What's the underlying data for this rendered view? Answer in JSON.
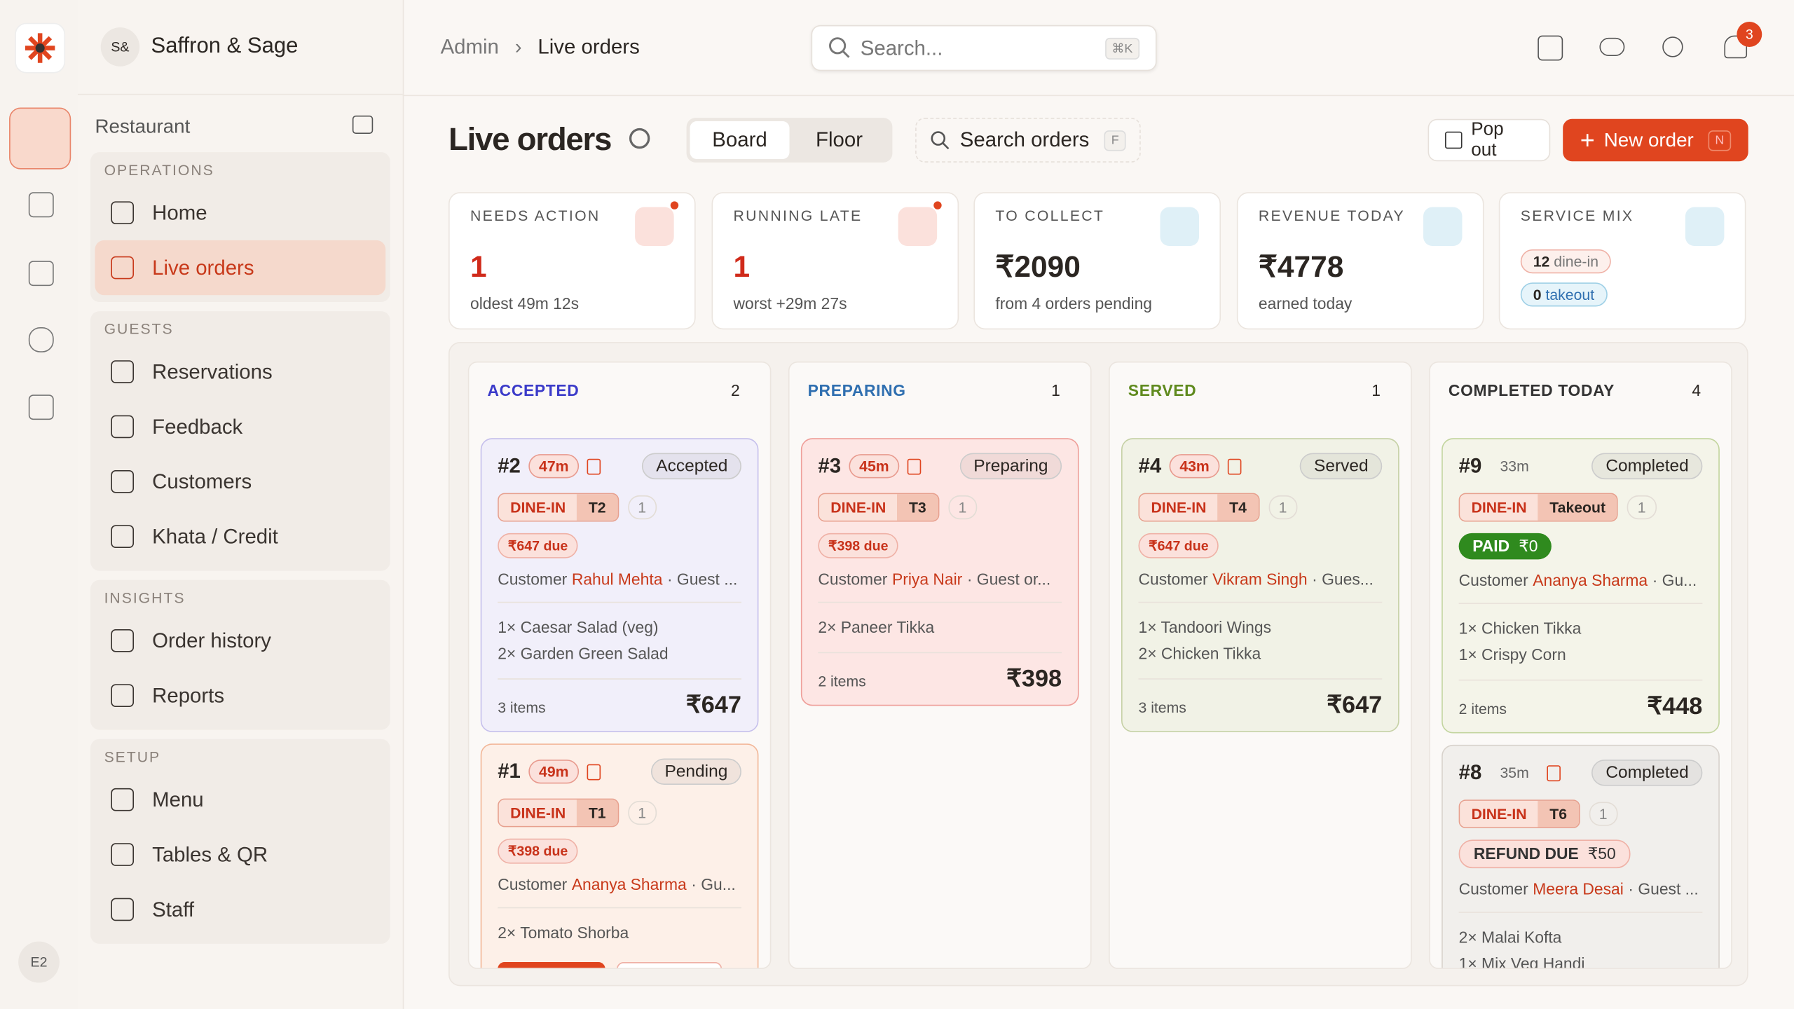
{
  "brand": {
    "initials": "S&",
    "name": "Saffron & Sage"
  },
  "rail_badge": "E2",
  "sidebar": {
    "section": "Restaurant",
    "active": "Live orders",
    "groups": [
      {
        "title": "OPERATIONS",
        "items": [
          "Home",
          "Live orders"
        ]
      },
      {
        "title": "GUESTS",
        "items": [
          "Reservations",
          "Feedback",
          "Customers",
          "Khata / Credit"
        ]
      },
      {
        "title": "INSIGHTS",
        "items": [
          "Order history",
          "Reports"
        ]
      },
      {
        "title": "SETUP",
        "items": [
          "Menu",
          "Tables & QR",
          "Staff"
        ]
      }
    ]
  },
  "breadcrumb": [
    "Admin",
    "Live orders"
  ],
  "search": {
    "placeholder": "Search...",
    "shortcut": "⌘K"
  },
  "notifications": 3,
  "page": {
    "title": "Live orders",
    "tabs": [
      "Board",
      "Floor"
    ],
    "search": "Search orders",
    "search_key": "F",
    "pop_out": "Pop out",
    "new_order": "New order",
    "new_key": "N"
  },
  "stats": [
    {
      "label": "NEEDS ACTION",
      "value": "1",
      "sub": "oldest 49m 12s",
      "alert": true
    },
    {
      "label": "RUNNING LATE",
      "value": "1",
      "sub": "worst +29m 27s",
      "alert": true
    },
    {
      "label": "TO COLLECT",
      "value": "₹2090",
      "sub": "from 4 orders pending"
    },
    {
      "label": "REVENUE TODAY",
      "value": "₹4778",
      "sub": "earned today"
    }
  ],
  "service_mix": {
    "label": "SERVICE MIX",
    "dine_in": 12,
    "dine_in_label": "dine-in",
    "takeout": 0,
    "takeout_label": "takeout"
  },
  "columns": [
    {
      "title": "ACCEPTED",
      "count": 2,
      "color": "#3b3bc9",
      "cards": [
        {
          "id": "#2",
          "age": "47m",
          "status": "Accepted",
          "theme": "accepted",
          "service": "DINE-IN",
          "table": "T2",
          "guests": 1,
          "badge": {
            "kind": "due",
            "label": "₹647 due"
          },
          "customer_label": "Customer",
          "customer": "Rahul Mehta",
          "guest": "· Guest ...",
          "items": [
            "1× Caesar Salad (veg)",
            "2× Garden Green Salad"
          ],
          "count": "3 items",
          "total": "₹647"
        },
        {
          "id": "#1",
          "age": "49m",
          "status": "Pending",
          "theme": "pending",
          "service": "DINE-IN",
          "table": "T1",
          "guests": 1,
          "badge": {
            "kind": "due",
            "label": "₹398 due"
          },
          "customer_label": "Customer",
          "customer": "Ananya Sharma",
          "guest": "· Gu...",
          "items": [
            "2× Tomato Shorba"
          ]
        }
      ]
    },
    {
      "title": "PREPARING",
      "count": 1,
      "color": "#2f6fb0",
      "cards": [
        {
          "id": "#3",
          "age": "45m",
          "status": "Preparing",
          "theme": "preparing",
          "service": "DINE-IN",
          "table": "T3",
          "guests": 1,
          "badge": {
            "kind": "due",
            "label": "₹398 due"
          },
          "customer_label": "Customer",
          "customer": "Priya Nair",
          "guest": "· Guest or...",
          "items": [
            "2× Paneer Tikka"
          ],
          "count": "2 items",
          "total": "₹398"
        }
      ]
    },
    {
      "title": "SERVED",
      "count": 1,
      "color": "#5f8a1e",
      "cards": [
        {
          "id": "#4",
          "age": "43m",
          "status": "Served",
          "theme": "served",
          "service": "DINE-IN",
          "table": "T4",
          "guests": 1,
          "badge": {
            "kind": "due",
            "label": "₹647 due"
          },
          "customer_label": "Customer",
          "customer": "Vikram Singh",
          "guest": "· Gues...",
          "items": [
            "1× Tandoori Wings",
            "2× Chicken Tikka"
          ],
          "count": "3 items",
          "total": "₹647"
        }
      ]
    },
    {
      "title": "COMPLETED TODAY",
      "count": 4,
      "color": "#333",
      "cards": [
        {
          "id": "#9",
          "age": "33m",
          "status": "Completed",
          "theme": "completed",
          "service": "DINE-IN",
          "table": "Takeout",
          "guests": 1,
          "badge": {
            "kind": "paid",
            "label": "PAID",
            "amount": "₹0"
          },
          "customer_label": "Customer",
          "customer": "Ananya Sharma",
          "guest": "· Gu...",
          "items": [
            "1× Chicken Tikka",
            "1× Crispy Corn"
          ],
          "count": "2 items",
          "total": "₹448"
        },
        {
          "id": "#8",
          "age": "35m",
          "status": "Completed",
          "theme": "done",
          "service": "DINE-IN",
          "table": "T6",
          "guests": 1,
          "badge": {
            "kind": "refund",
            "label": "REFUND DUE",
            "amount": "₹50"
          },
          "customer_label": "Customer",
          "customer": "Meera Desai",
          "guest": "· Guest ...",
          "items": [
            "2× Malai Kofta",
            "1× Mix Veg Handi"
          ]
        }
      ]
    }
  ]
}
